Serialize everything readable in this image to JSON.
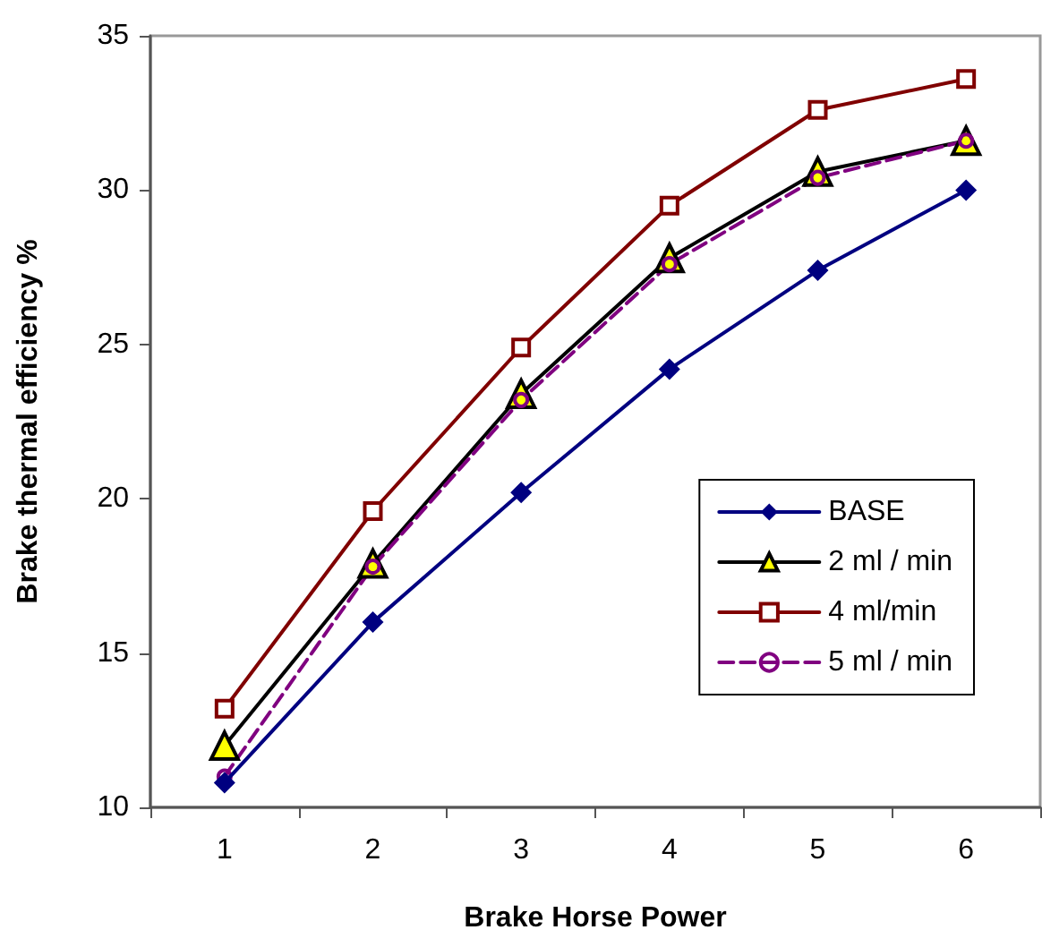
{
  "chart_data": {
    "type": "line",
    "xlabel": "Brake Horse Power",
    "ylabel": "Brake thermal efficiency %",
    "categories": [
      "1",
      "2",
      "3",
      "4",
      "5",
      "6"
    ],
    "ylim": [
      10,
      35
    ],
    "yticks": [
      10,
      15,
      20,
      25,
      30,
      35
    ],
    "grid": false,
    "legend": "bottom right",
    "series": [
      {
        "name": "BASE",
        "color": "#000080",
        "marker": "diamond",
        "line_style": "solid",
        "values": [
          10.8,
          16.0,
          20.2,
          24.2,
          27.4,
          30.0
        ]
      },
      {
        "name": "2 ml / min",
        "color": "#000000",
        "marker": "triangle",
        "line_style": "solid",
        "values": [
          12.0,
          17.9,
          23.4,
          27.8,
          30.6,
          31.6
        ]
      },
      {
        "name": "4 ml/min",
        "color": "#800000",
        "marker": "square",
        "line_style": "solid",
        "values": [
          13.2,
          19.6,
          24.9,
          29.5,
          32.6,
          33.6
        ]
      },
      {
        "name": "5 ml / min",
        "color": "#800080",
        "marker": "circle",
        "line_style": "dashed",
        "values": [
          11.0,
          17.8,
          23.2,
          27.6,
          30.4,
          31.6
        ]
      }
    ]
  }
}
